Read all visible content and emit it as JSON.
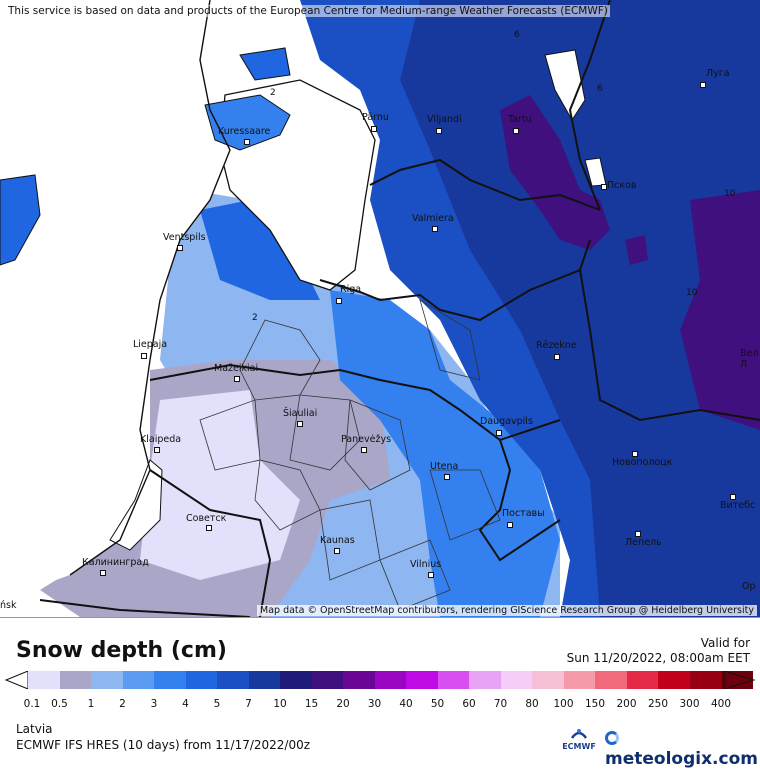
{
  "notice": "This service is based on data and products of the European Centre for Medium-range Weather Forecasts (ECMWF)",
  "attribution": "Map data © OpenStreetMap contributors, rendering GIScience Research Group @ Heidelberg University",
  "legend": {
    "title": "Snow depth (cm)",
    "valid_label": "Valid for",
    "valid_time": "Sun 11/20/2022, 08:00am EET",
    "ticks": [
      "0.1",
      "0.5",
      "1",
      "2",
      "3",
      "4",
      "5",
      "7",
      "10",
      "15",
      "20",
      "30",
      "40",
      "50",
      "60",
      "70",
      "80",
      "100",
      "150",
      "200",
      "250",
      "300",
      "400"
    ],
    "colors": [
      "#e2e0fb",
      "#a9a6c8",
      "#8eb6f0",
      "#5b9cf2",
      "#3480ee",
      "#1f66e0",
      "#1b4fc4",
      "#17399d",
      "#1f1b7a",
      "#3f107e",
      "#6a0797",
      "#9a06c2",
      "#bf0ae6",
      "#d84ef0",
      "#e8a2f5",
      "#f5cdf7",
      "#f6c0d6",
      "#f59aa8",
      "#f06a7c",
      "#e52a48",
      "#c1001b",
      "#960012",
      "#6d000c"
    ]
  },
  "contour_labels": [
    "6",
    "6",
    "2",
    "2",
    "10",
    "10"
  ],
  "cities": [
    {
      "name": "Pärnu"
    },
    {
      "name": "Viljandi"
    },
    {
      "name": "Tartu"
    },
    {
      "name": "Луга"
    },
    {
      "name": "Kuressaare"
    },
    {
      "name": "Псков"
    },
    {
      "name": "Ventspils"
    },
    {
      "name": "Valmiera"
    },
    {
      "name": "Riga"
    },
    {
      "name": "Liepaja"
    },
    {
      "name": "Rēzekne"
    },
    {
      "name": "Mažeikiai"
    },
    {
      "name": "Šiauliai"
    },
    {
      "name": "Panevėžys"
    },
    {
      "name": "Klaipeda"
    },
    {
      "name": "Daugavpils"
    },
    {
      "name": "Новополоцк"
    },
    {
      "name": "Utena"
    },
    {
      "name": "Советск"
    },
    {
      "name": "Поставы"
    },
    {
      "name": "Kaunas"
    },
    {
      "name": "Лепель"
    },
    {
      "name": "Витебс"
    },
    {
      "name": "Калининград"
    },
    {
      "name": "Vilnius"
    },
    {
      "name": "Вел Л"
    },
    {
      "name": "Ор"
    },
    {
      "name": "ńsk"
    }
  ],
  "footer": {
    "region": "Latvia",
    "model": "ECMWF IFS HRES (10 days) from 11/17/2022/00z",
    "ecmwf_logo": "ECMWF",
    "brand": "meteologix.com"
  }
}
